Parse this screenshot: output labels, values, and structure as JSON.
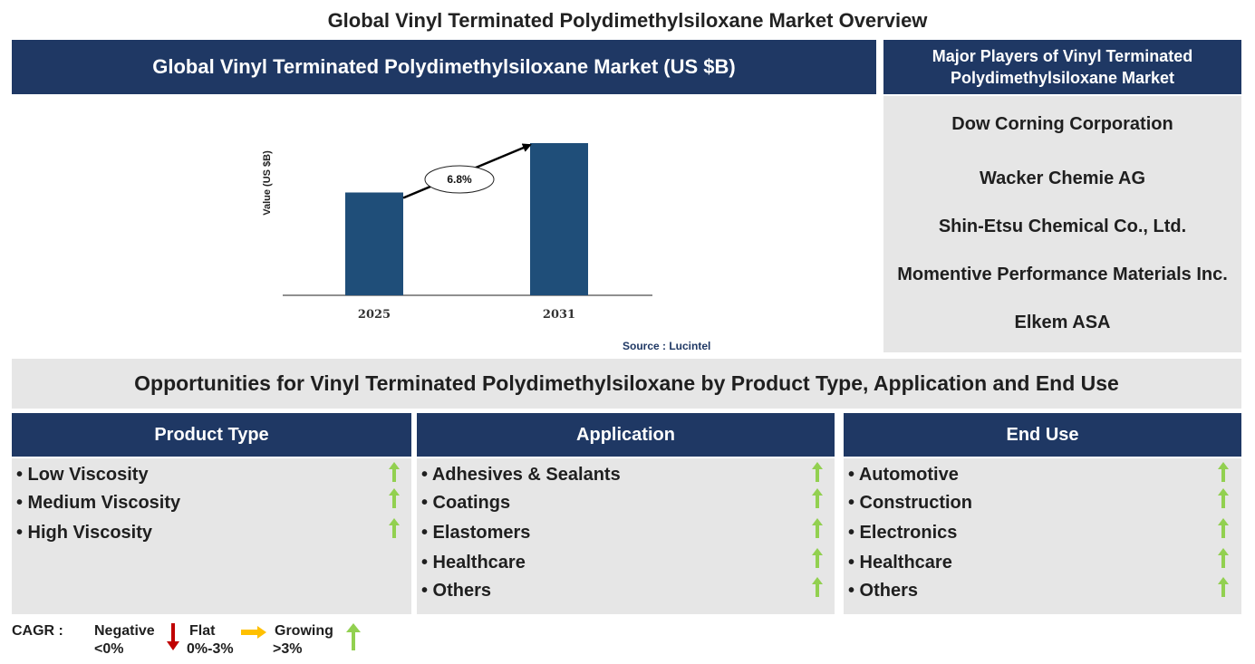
{
  "title": "Global Vinyl Terminated Polydimethylsiloxane Market Overview",
  "market_header": "Global Vinyl Terminated Polydimethylsiloxane Market (US $B)",
  "players": {
    "header": "Major Players of Vinyl Terminated Polydimethylsiloxane Market",
    "items": [
      "Dow Corning Corporation",
      "Wacker Chemie AG",
      "Shin-Etsu Chemical Co., Ltd.",
      "Momentive Performance Materials Inc.",
      "Elkem ASA"
    ]
  },
  "chart_data": {
    "type": "bar",
    "categories": [
      "2025",
      "2031"
    ],
    "values": [
      1.0,
      1.48
    ],
    "ylabel": "Value (US $B)",
    "annotation": "6.8%",
    "bar_color": "#1f4e79",
    "source": "Source : Lucintel"
  },
  "opportunities": {
    "header": "Opportunities for Vinyl Terminated Polydimethylsiloxane by Product Type, Application and End Use",
    "segments": [
      {
        "title": "Product Type",
        "items": [
          "• Low Viscosity",
          "• Medium Viscosity",
          "• High Viscosity"
        ]
      },
      {
        "title": "Application",
        "items": [
          "• Adhesives & Sealants",
          "• Coatings",
          "• Elastomers",
          "• Healthcare",
          "• Others"
        ]
      },
      {
        "title": "End Use",
        "items": [
          "• Automotive",
          "• Construction",
          "• Electronics",
          "• Healthcare",
          "• Others"
        ]
      }
    ],
    "trend_icon": "green-up-arrow-icon"
  },
  "legend": {
    "label": "CAGR :",
    "negative": {
      "name": "Negative",
      "range": "<0%",
      "color": "#c00000"
    },
    "flat": {
      "name": "Flat",
      "range": "0%-3%",
      "color": "#ffc000"
    },
    "growing": {
      "name": "Growing",
      "range": ">3%",
      "color": "#92d050"
    }
  },
  "colors": {
    "navy": "#1f3864",
    "panel_grey": "#e6e6e6",
    "growth_green": "#92d050"
  }
}
